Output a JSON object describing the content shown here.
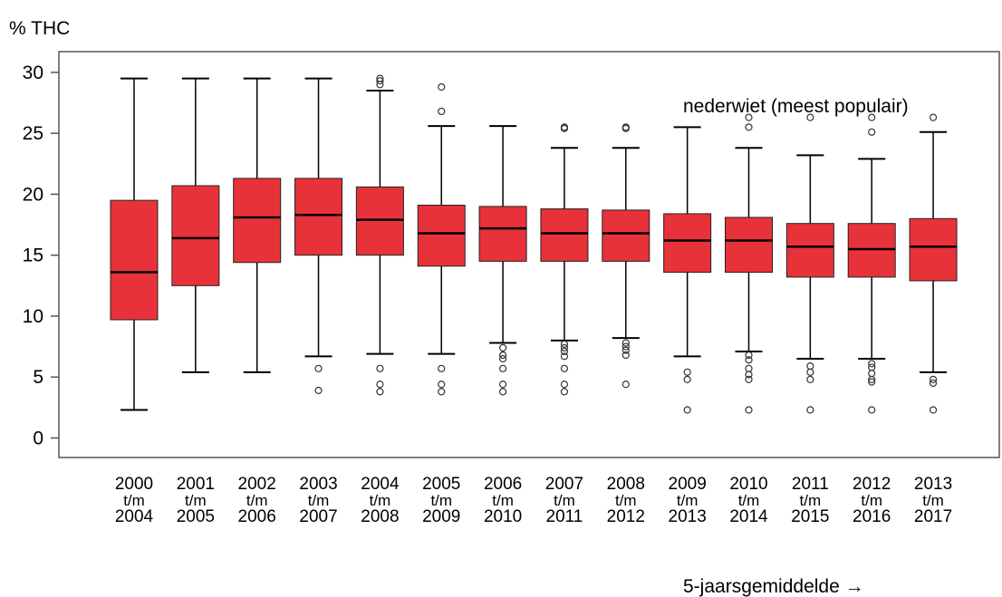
{
  "chart_data": {
    "type": "box",
    "y_label": "% THC",
    "x_label": "5-jaarsgemiddelde →",
    "annotation": "nederwiet (meest populair)",
    "color": "#e8323a",
    "ylim": [
      -1.6,
      31.7
    ],
    "yticks": [
      0,
      5,
      10,
      15,
      20,
      25,
      30
    ],
    "categories": [
      "2000\nt/m\n2004",
      "2001\nt/m\n2005",
      "2002\nt/m\n2006",
      "2003\nt/m\n2007",
      "2004\nt/m\n2008",
      "2005\nt/m\n2009",
      "2006\nt/m\n2010",
      "2007\nt/m\n2011",
      "2008\nt/m\n2012",
      "2009\nt/m\n2013",
      "2010\nt/m\n2014",
      "2011\nt/m\n2015",
      "2012\nt/m\n2016",
      "2013\nt/m\n2017"
    ],
    "boxes": [
      {
        "min": 2.3,
        "q1": 9.7,
        "median": 13.6,
        "q3": 19.5,
        "max": 29.5,
        "outliers": []
      },
      {
        "min": 5.4,
        "q1": 12.5,
        "median": 16.4,
        "q3": 20.7,
        "max": 29.5,
        "outliers": []
      },
      {
        "min": 5.4,
        "q1": 14.4,
        "median": 18.1,
        "q3": 21.3,
        "max": 29.5,
        "outliers": []
      },
      {
        "min": 6.7,
        "q1": 15.0,
        "median": 18.3,
        "q3": 21.3,
        "max": 29.5,
        "outliers": [
          5.7,
          3.9
        ]
      },
      {
        "min": 6.9,
        "q1": 15.0,
        "median": 17.9,
        "q3": 20.6,
        "max": 28.5,
        "outliers": [
          29.5,
          29.3,
          29.0,
          5.7,
          4.4,
          3.8
        ]
      },
      {
        "min": 6.9,
        "q1": 14.1,
        "median": 16.8,
        "q3": 19.1,
        "max": 25.6,
        "outliers": [
          28.8,
          26.8,
          5.7,
          4.4,
          3.8
        ]
      },
      {
        "min": 7.8,
        "q1": 14.5,
        "median": 17.2,
        "q3": 19.0,
        "max": 25.6,
        "outliers": [
          7.4,
          6.8,
          6.5,
          5.7,
          4.4,
          3.8
        ]
      },
      {
        "min": 8.0,
        "q1": 14.5,
        "median": 16.8,
        "q3": 18.8,
        "max": 23.8,
        "outliers": [
          25.5,
          25.4,
          7.7,
          7.4,
          7.1,
          6.7,
          5.7,
          4.4,
          3.8
        ]
      },
      {
        "min": 8.2,
        "q1": 14.5,
        "median": 16.8,
        "q3": 18.7,
        "max": 23.8,
        "outliers": [
          25.5,
          25.4,
          7.8,
          7.5,
          7.2,
          6.8,
          4.4
        ]
      },
      {
        "min": 6.7,
        "q1": 13.6,
        "median": 16.2,
        "q3": 18.4,
        "max": 25.5,
        "outliers": [
          5.4,
          4.8,
          2.3
        ]
      },
      {
        "min": 7.1,
        "q1": 13.6,
        "median": 16.2,
        "q3": 18.1,
        "max": 23.8,
        "outliers": [
          26.3,
          25.5,
          6.8,
          6.4,
          5.7,
          5.2,
          4.8,
          2.3
        ]
      },
      {
        "min": 6.5,
        "q1": 13.2,
        "median": 15.7,
        "q3": 17.6,
        "max": 23.2,
        "outliers": [
          26.3,
          5.9,
          5.4,
          4.8,
          2.3
        ]
      },
      {
        "min": 6.5,
        "q1": 13.2,
        "median": 15.5,
        "q3": 17.6,
        "max": 22.9,
        "outliers": [
          26.3,
          25.1,
          6.1,
          5.8,
          5.3,
          4.8,
          4.6,
          2.3
        ]
      },
      {
        "min": 5.4,
        "q1": 12.9,
        "median": 15.7,
        "q3": 18.0,
        "max": 25.1,
        "outliers": [
          26.3,
          4.8,
          4.5,
          2.3
        ]
      }
    ]
  }
}
